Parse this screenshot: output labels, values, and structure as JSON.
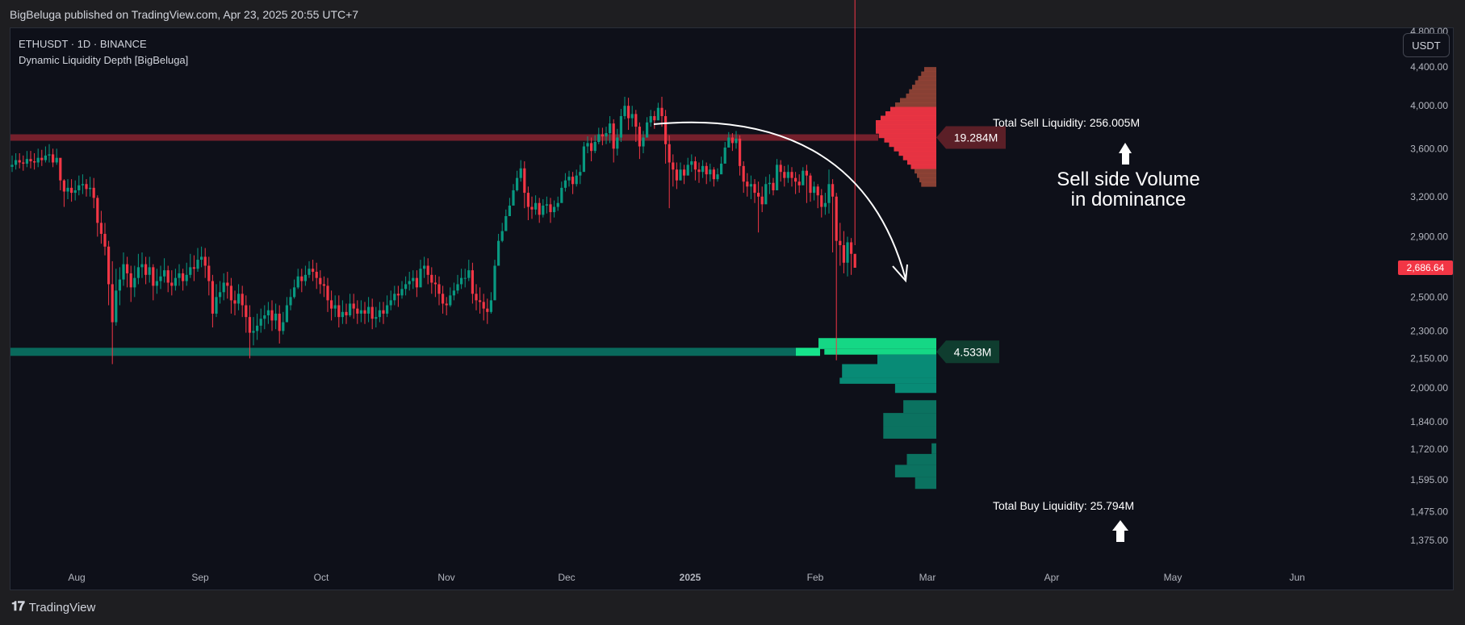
{
  "header": {
    "published": "BigBeluga published on TradingView.com, Apr 23, 2025 20:55 UTC+7"
  },
  "legend": {
    "symbol": "ETHUSDT · 1D · BINANCE",
    "indicator": "Dynamic Liquidity Depth [BigBeluga]"
  },
  "currency_button": "USDT",
  "footer": {
    "brand": "TradingView",
    "logo_icon": "tradingview-logo-icon"
  },
  "chart_data": {
    "type": "candlestick",
    "symbol": "ETHUSDT",
    "interval": "1D",
    "exchange": "BINANCE",
    "y_scale": "log",
    "ylim": [
      1270,
      4850
    ],
    "x_ticks": [
      "Aug",
      "Sep",
      "Oct",
      "Nov",
      "Dec",
      "2025",
      "Feb",
      "Mar",
      "Apr",
      "May",
      "Jun"
    ],
    "y_ticks": [
      "4,800.00",
      "4,400.00",
      "4,000.00",
      "3,600.00",
      "3,200.00",
      "2,900.00",
      "2,500.00",
      "2,300.00",
      "2,150.00",
      "2,000.00",
      "1,840.00",
      "1,720.00",
      "1,595.00",
      "1,475.00",
      "1,375.00"
    ],
    "y_tick_values": [
      4800,
      4400,
      4000,
      3600,
      3200,
      2900,
      2500,
      2300,
      2150,
      2000,
      1840,
      1720,
      1595,
      1475,
      1375
    ],
    "last_price": {
      "label": "2,686.64",
      "value": 2686.64,
      "color": "#f23645"
    },
    "closes": [
      3460,
      3500,
      3480,
      3470,
      3510,
      3490,
      3480,
      3520,
      3500,
      3540,
      3550,
      3480,
      3520,
      3330,
      3240,
      3270,
      3230,
      3250,
      3290,
      3300,
      3260,
      3270,
      3190,
      3000,
      2920,
      2830,
      2580,
      2350,
      2540,
      2610,
      2710,
      2650,
      2560,
      2620,
      2690,
      2710,
      2640,
      2690,
      2570,
      2600,
      2630,
      2670,
      2590,
      2570,
      2620,
      2650,
      2600,
      2640,
      2690,
      2680,
      2740,
      2760,
      2700,
      2600,
      2400,
      2500,
      2530,
      2590,
      2570,
      2480,
      2460,
      2520,
      2450,
      2380,
      2290,
      2300,
      2330,
      2370,
      2390,
      2420,
      2360,
      2400,
      2300,
      2350,
      2450,
      2500,
      2560,
      2630,
      2600,
      2640,
      2680,
      2660,
      2620,
      2580,
      2570,
      2480,
      2430,
      2450,
      2380,
      2410,
      2390,
      2460,
      2430,
      2400,
      2420,
      2400,
      2440,
      2370,
      2380,
      2420,
      2400,
      2450,
      2480,
      2520,
      2510,
      2550,
      2580,
      2600,
      2620,
      2560,
      2680,
      2700,
      2640,
      2590,
      2580,
      2520,
      2460,
      2450,
      2510,
      2540,
      2580,
      2620,
      2620,
      2670,
      2520,
      2480,
      2470,
      2430,
      2410,
      2480,
      2700,
      2870,
      2940,
      3050,
      3130,
      3250,
      3350,
      3430,
      3230,
      3120,
      3100,
      3150,
      3060,
      3130,
      3140,
      3080,
      3120,
      3150,
      3270,
      3330,
      3360,
      3300,
      3370,
      3400,
      3620,
      3650,
      3580,
      3660,
      3730,
      3710,
      3740,
      3830,
      3600,
      3700,
      3900,
      4000,
      3880,
      3920,
      3800,
      3620,
      3700,
      3840,
      3900,
      3860,
      3980,
      3900,
      3640,
      3480,
      3420,
      3330,
      3420,
      3370,
      3460,
      3490,
      3420,
      3400,
      3450,
      3380,
      3420,
      3340,
      3380,
      3470,
      3610,
      3700,
      3650,
      3690,
      3450,
      3320,
      3280,
      3300,
      3230,
      3200,
      3140,
      3300,
      3310,
      3250,
      3460,
      3400,
      3350,
      3400,
      3350,
      3320,
      3290,
      3410,
      3370,
      3230,
      3280,
      3210,
      3120,
      3150,
      3300,
      3200,
      2870,
      2840,
      2720,
      2860,
      2780,
      2686.64
    ],
    "highs": [
      3540,
      3560,
      3560,
      3540,
      3580,
      3580,
      3560,
      3600,
      3590,
      3620,
      3640,
      3600,
      3600,
      3480,
      3340,
      3340,
      3340,
      3330,
      3370,
      3380,
      3340,
      3360,
      3350,
      3210,
      3090,
      3000,
      2870,
      2730,
      2680,
      2690,
      2790,
      2760,
      2700,
      2700,
      2780,
      2790,
      2760,
      2760,
      2710,
      2680,
      2700,
      2750,
      2700,
      2670,
      2680,
      2710,
      2680,
      2720,
      2780,
      2770,
      2820,
      2830,
      2820,
      2760,
      2640,
      2580,
      2600,
      2650,
      2660,
      2620,
      2540,
      2580,
      2570,
      2510,
      2450,
      2380,
      2400,
      2430,
      2450,
      2470,
      2480,
      2460,
      2450,
      2410,
      2500,
      2550,
      2610,
      2680,
      2680,
      2700,
      2730,
      2740,
      2720,
      2670,
      2630,
      2620,
      2540,
      2510,
      2510,
      2480,
      2460,
      2520,
      2520,
      2480,
      2480,
      2470,
      2500,
      2490,
      2440,
      2470,
      2470,
      2510,
      2540,
      2570,
      2570,
      2600,
      2630,
      2660,
      2670,
      2670,
      2740,
      2760,
      2750,
      2690,
      2640,
      2630,
      2570,
      2500,
      2560,
      2590,
      2640,
      2680,
      2680,
      2740,
      2720,
      2580,
      2560,
      2520,
      2490,
      2530,
      2740,
      2920,
      3000,
      3100,
      3190,
      3300,
      3410,
      3500,
      3490,
      3280,
      3200,
      3210,
      3190,
      3180,
      3200,
      3190,
      3170,
      3200,
      3320,
      3390,
      3410,
      3400,
      3420,
      3460,
      3660,
      3710,
      3700,
      3720,
      3790,
      3790,
      3800,
      3900,
      3870,
      3780,
      3970,
      4090,
      4080,
      4000,
      3960,
      3840,
      3760,
      3890,
      3960,
      3950,
      4030,
      4090,
      3960,
      3720,
      3550,
      3480,
      3480,
      3460,
      3520,
      3550,
      3530,
      3480,
      3500,
      3480,
      3470,
      3440,
      3430,
      3530,
      3660,
      3750,
      3740,
      3760,
      3720,
      3490,
      3390,
      3370,
      3340,
      3320,
      3280,
      3360,
      3380,
      3350,
      3510,
      3500,
      3450,
      3460,
      3440,
      3400,
      3380,
      3440,
      3460,
      3390,
      3320,
      3300,
      3260,
      3230,
      3420,
      3340,
      3230,
      3000,
      2940,
      2900,
      2890,
      2840
    ],
    "lows": [
      3400,
      3420,
      3430,
      3410,
      3440,
      3430,
      3420,
      3440,
      3450,
      3480,
      3480,
      3440,
      3460,
      3250,
      3120,
      3180,
      3160,
      3170,
      3210,
      3220,
      3200,
      3200,
      3110,
      2900,
      2850,
      2770,
      2450,
      2120,
      2330,
      2450,
      2570,
      2560,
      2470,
      2500,
      2580,
      2620,
      2580,
      2590,
      2480,
      2520,
      2550,
      2590,
      2530,
      2510,
      2540,
      2570,
      2540,
      2570,
      2620,
      2600,
      2660,
      2690,
      2620,
      2510,
      2320,
      2380,
      2460,
      2480,
      2490,
      2400,
      2390,
      2420,
      2380,
      2290,
      2150,
      2220,
      2250,
      2290,
      2310,
      2340,
      2300,
      2310,
      2230,
      2280,
      2360,
      2420,
      2490,
      2550,
      2530,
      2570,
      2620,
      2600,
      2550,
      2520,
      2500,
      2410,
      2360,
      2380,
      2320,
      2340,
      2340,
      2380,
      2370,
      2340,
      2350,
      2340,
      2350,
      2310,
      2320,
      2350,
      2340,
      2380,
      2420,
      2450,
      2440,
      2490,
      2510,
      2540,
      2550,
      2500,
      2580,
      2620,
      2580,
      2520,
      2500,
      2450,
      2400,
      2390,
      2440,
      2480,
      2520,
      2550,
      2560,
      2600,
      2460,
      2420,
      2400,
      2360,
      2340,
      2400,
      2650,
      2790,
      2860,
      2960,
      3050,
      3170,
      3240,
      3320,
      3110,
      3020,
      3030,
      3060,
      3000,
      3040,
      3070,
      3000,
      3040,
      3090,
      3190,
      3240,
      3280,
      3220,
      3280,
      3300,
      3500,
      3560,
      3490,
      3560,
      3640,
      3630,
      3640,
      3650,
      3480,
      3540,
      3660,
      3870,
      3770,
      3800,
      3660,
      3510,
      3560,
      3700,
      3800,
      3780,
      3860,
      3800,
      3470,
      3110,
      3280,
      3260,
      3330,
      3300,
      3390,
      3400,
      3330,
      3310,
      3350,
      3300,
      3320,
      3280,
      3320,
      3390,
      3540,
      3610,
      3580,
      3600,
      3370,
      3230,
      3200,
      3180,
      3150,
      2930,
      3080,
      3180,
      3220,
      3210,
      3360,
      3320,
      3280,
      3310,
      3280,
      3220,
      3230,
      3330,
      3150,
      3160,
      3170,
      3110,
      3040,
      3060,
      3070,
      2790,
      2140,
      2700,
      2650,
      2630,
      2640
    ],
    "sell_side": {
      "label": "Total Sell Liquidity: 256.005M",
      "total": 256.005,
      "poc_label": "19.284M",
      "poc_value": 19.284,
      "poc_price": 3700,
      "color": "#f23645",
      "profile_top": 4400,
      "profile_bottom": 3280,
      "profile_shape": [
        0.2,
        0.25,
        0.3,
        0.35,
        0.4,
        0.45,
        0.5,
        0.6,
        0.68,
        0.76,
        0.84,
        0.92,
        1.0,
        1.0,
        1.0,
        0.95,
        0.86,
        0.78,
        0.7,
        0.62,
        0.55,
        0.48,
        0.42,
        0.36,
        0.32,
        0.28,
        0.25
      ]
    },
    "buy_side": {
      "label": "Total Buy Liquidity: 25.794M",
      "total": 25.794,
      "poc_label": "4.533M",
      "poc_value": 4.533,
      "poc_price": 2185,
      "color": "#089981",
      "bins": [
        {
          "top": 2260,
          "bottom": 2200,
          "width": 1.0
        },
        {
          "top": 2200,
          "bottom": 2170,
          "width": 0.95
        },
        {
          "top": 2170,
          "bottom": 2120,
          "width": 0.5
        },
        {
          "top": 2120,
          "bottom": 2050,
          "width": 0.8
        },
        {
          "top": 2050,
          "bottom": 2020,
          "width": 0.82
        },
        {
          "top": 2020,
          "bottom": 1975,
          "width": 0.35
        },
        {
          "top": 1940,
          "bottom": 1880,
          "width": 0.28
        },
        {
          "top": 1880,
          "bottom": 1820,
          "width": 0.45
        },
        {
          "top": 1820,
          "bottom": 1765,
          "width": 0.45
        },
        {
          "top": 1745,
          "bottom": 1700,
          "width": 0.04
        },
        {
          "top": 1700,
          "bottom": 1655,
          "width": 0.25
        },
        {
          "top": 1655,
          "bottom": 1605,
          "width": 0.35
        },
        {
          "top": 1605,
          "bottom": 1560,
          "width": 0.18
        }
      ]
    },
    "annotations": [
      {
        "text": "Sell side Volume",
        "kind": "headline-1"
      },
      {
        "text": "in dominance",
        "kind": "headline-2"
      }
    ],
    "candle_colors": {
      "up": "#089981",
      "down": "#f23645"
    },
    "background": "#0e1019",
    "grid": false
  }
}
